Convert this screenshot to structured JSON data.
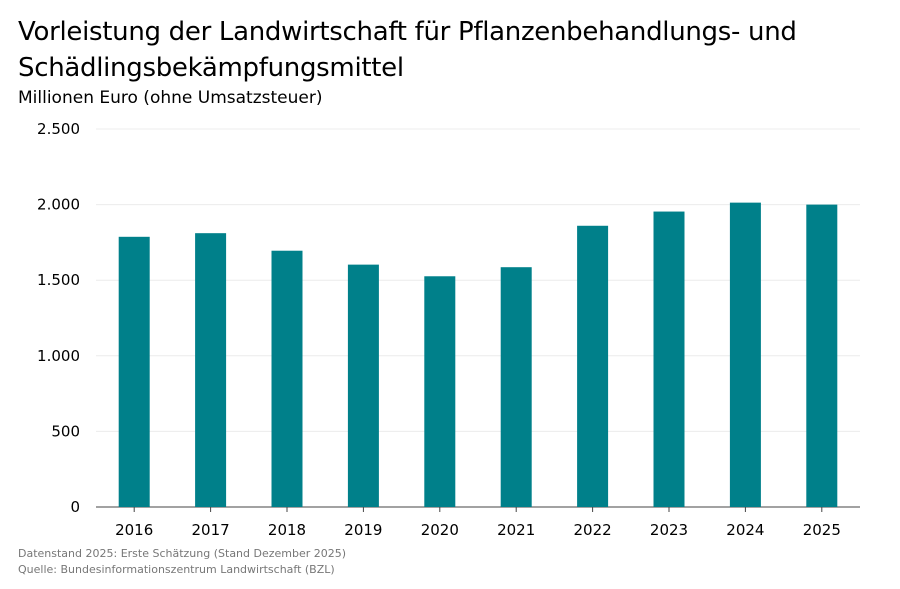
{
  "chart_data": {
    "type": "bar",
    "title": "Vorleistung der Landwirtschaft für Pflanzenbehandlungs- und Schädlingsbekämpfungsmittel",
    "subtitle": "Millionen Euro (ohne Umsatzsteuer)",
    "categories": [
      "2016",
      "2017",
      "2018",
      "2019",
      "2020",
      "2021",
      "2022",
      "2023",
      "2024",
      "2025"
    ],
    "values": [
      1787,
      1811,
      1695,
      1603,
      1526,
      1586,
      1860,
      1954,
      2013,
      2000
    ],
    "ylim": [
      0,
      2500
    ],
    "yticks": [
      0,
      500,
      1000,
      1500,
      2000,
      2500
    ],
    "ytick_labels": [
      "0",
      "500",
      "1.000",
      "1.500",
      "2.000",
      "2.500"
    ],
    "grid": true,
    "bar_color": "#00808a"
  },
  "footer": {
    "note": "Datenstand 2025: Erste Schätzung (Stand Dezember 2025)",
    "source": "Quelle: Bundesinformationszentrum Landwirtschaft (BZL)"
  }
}
